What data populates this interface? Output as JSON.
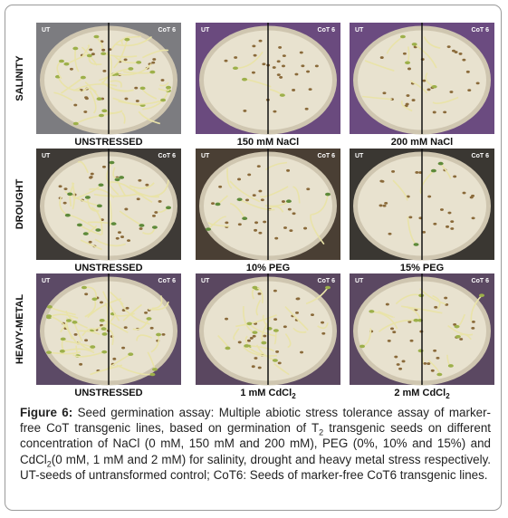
{
  "dish_labels": {
    "left": "UT",
    "right": "CoT 6"
  },
  "rows": [
    {
      "label": "SALINITY",
      "panels": [
        {
          "caption": [
            {
              "text": "UNSTRESSED"
            }
          ]
        },
        {
          "caption": [
            {
              "text": "150 mM NaCl"
            }
          ]
        },
        {
          "caption": [
            {
              "text": "200 mM NaCl"
            }
          ]
        }
      ]
    },
    {
      "label": "DROUGHT",
      "panels": [
        {
          "caption": [
            {
              "text": "UNSTRESSED"
            }
          ]
        },
        {
          "caption": [
            {
              "text": "10% PEG"
            }
          ]
        },
        {
          "caption": [
            {
              "text": "15% PEG"
            }
          ]
        }
      ]
    },
    {
      "label": "HEAVY-METAL",
      "panels": [
        {
          "caption": [
            {
              "text": "UNSTRESSED"
            }
          ]
        },
        {
          "caption": [
            {
              "text": "1 mM CdCl"
            },
            {
              "sub": "2"
            }
          ]
        },
        {
          "caption": [
            {
              "text": "2 mM CdCl"
            },
            {
              "sub": "2"
            }
          ]
        }
      ]
    }
  ],
  "caption": {
    "label": "Figure 6:",
    "segments": [
      {
        "text": "Seed germination assay: Multiple abiotic stress tolerance assay of marker-free CoT transgenic lines, based on germination of T"
      },
      {
        "sub": "2"
      },
      {
        "text": " transgenic seeds on different concentration of NaCl (0 mM, 150 mM and 200 mM), PEG (0%, 10% and 15%) and CdCl"
      },
      {
        "sub": "2"
      },
      {
        "text": "(0 mM, 1 mM and 2 mM) for salinity, drought and heavy metal stress respectively. UT-seeds of untransformed control; CoT6: Seeds of marker-free CoT6 transgenic lines."
      }
    ]
  }
}
